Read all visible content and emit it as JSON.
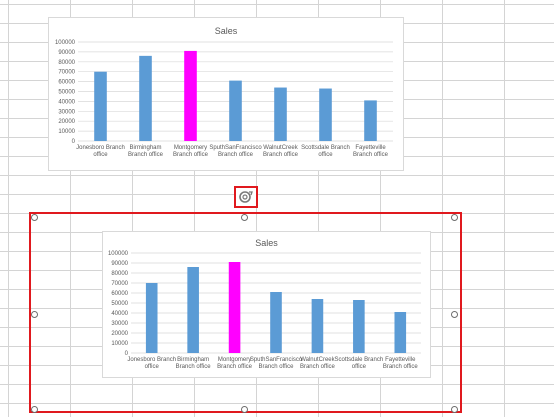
{
  "app": {
    "kind": "spreadsheet",
    "selection_color": "#e0191e",
    "icons": [
      "rotate-handle-icon"
    ]
  },
  "charts": [
    {
      "id": "top-chart",
      "title": "Sales",
      "bar_color": "#5b9bd5",
      "highlight_color": "#ff00ff"
    },
    {
      "id": "selected-chart",
      "title": "Sales",
      "bar_color": "#5b9bd5",
      "highlight_color": "#ff00ff"
    }
  ],
  "chart_data": [
    {
      "type": "bar",
      "title": "Sales",
      "categories": [
        [
          "Jonesboro Branch",
          "office"
        ],
        [
          "Birmingham",
          "Branch office"
        ],
        [
          "Montgomery",
          "Branch office"
        ],
        [
          "SputhSanFrancisco",
          "Branch office"
        ],
        [
          "WalnutCreek",
          "Branch office"
        ],
        [
          "Scottsdale Branch",
          "office"
        ],
        [
          "Fayetteville",
          "Branch office"
        ]
      ],
      "values": [
        70000,
        86000,
        91000,
        61000,
        54000,
        53000,
        41000
      ],
      "highlight_index": 2,
      "ylim": [
        0,
        100000
      ],
      "yticks": [
        0,
        10000,
        20000,
        30000,
        40000,
        50000,
        60000,
        70000,
        80000,
        90000,
        100000
      ],
      "grid": true,
      "xlabel": "",
      "ylabel": ""
    },
    {
      "type": "bar",
      "title": "Sales",
      "categories": [
        [
          "Jonesboro Branch",
          "office"
        ],
        [
          "Birmingham",
          "Branch office"
        ],
        [
          "Montgomery",
          "Branch office"
        ],
        [
          "SputhSanFrancisco",
          "Branch office"
        ],
        [
          "WalnutCreek",
          "Branch office"
        ],
        [
          "Scottsdale Branch",
          "office"
        ],
        [
          "Fayetteville",
          "Branch office"
        ]
      ],
      "values": [
        70000,
        86000,
        91000,
        61000,
        54000,
        53000,
        41000
      ],
      "highlight_index": 2,
      "ylim": [
        0,
        100000
      ],
      "yticks": [
        0,
        10000,
        20000,
        30000,
        40000,
        50000,
        60000,
        70000,
        80000,
        90000,
        100000
      ],
      "grid": true,
      "xlabel": "",
      "ylabel": ""
    }
  ]
}
